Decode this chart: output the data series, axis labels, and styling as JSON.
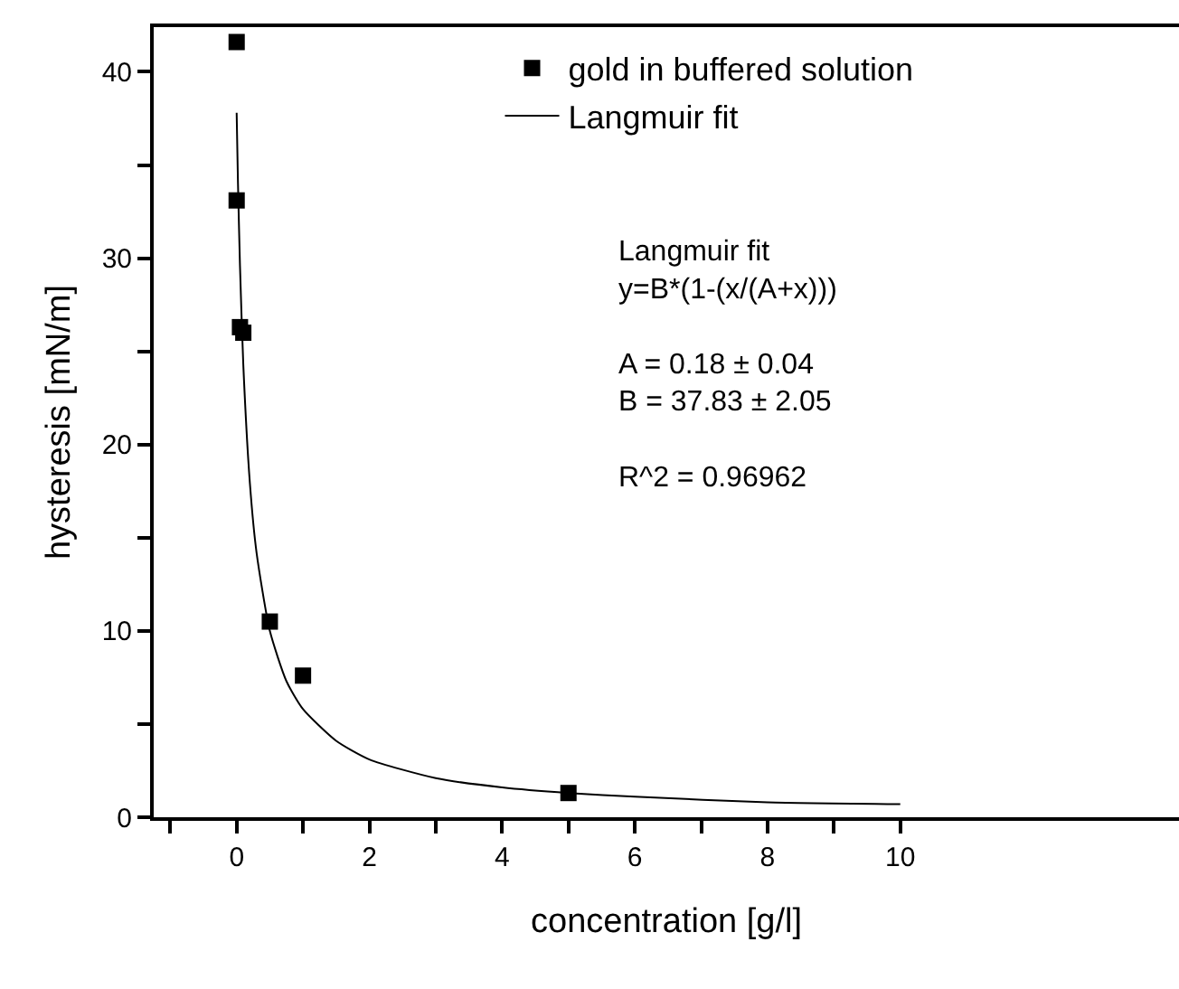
{
  "chart_data": {
    "type": "scatter",
    "xlabel": "concentration [g/l]",
    "ylabel": "hysteresis [mN/m]",
    "series": [
      {
        "name": "gold in buffered solution",
        "color": "#000000",
        "marker": "square",
        "x": [
          0,
          0,
          0.05,
          0.1,
          0.5,
          1,
          5
        ],
        "values": [
          41.6,
          33.1,
          26.3,
          26.0,
          10.5,
          7.6,
          1.3
        ]
      },
      {
        "name": "Langmuir fit",
        "type": "line",
        "color": "#000000",
        "marker": "none",
        "line_style": "solid",
        "x": [
          0,
          0.02,
          0.05,
          0.1,
          0.2,
          0.3,
          0.5,
          0.75,
          1,
          1.5,
          2,
          3,
          4,
          5,
          6,
          8,
          10
        ],
        "values": [
          37.8,
          34.0,
          29.6,
          24.3,
          17.9,
          14.2,
          10.0,
          7.3,
          5.8,
          4.1,
          3.1,
          2.1,
          1.6,
          1.3,
          1.1,
          0.8,
          0.7
        ]
      }
    ],
    "xlim": [
      -1.25,
      14.2
    ],
    "ylim": [
      0,
      42.4
    ],
    "xticks": [
      {
        "value": -1,
        "label": null
      },
      0,
      {
        "value": 1,
        "label": null
      },
      2,
      {
        "value": 3,
        "label": null
      },
      4,
      {
        "value": 5,
        "label": null
      },
      6,
      {
        "value": 7,
        "label": null
      },
      8,
      {
        "value": 9,
        "label": null
      },
      10
    ],
    "yticks": [
      0,
      {
        "value": 5,
        "label": null
      },
      10,
      {
        "value": 15,
        "label": null
      },
      20,
      {
        "value": 25,
        "label": null
      },
      30,
      {
        "value": 35,
        "label": null
      },
      40
    ],
    "grid": false,
    "legend": "top right",
    "annotations": [
      "Langmuir fit\ny=B*(1-(x/(A+x)))\n\nA = 0.18 ± 0.04\nB = 37.83 ± 2.05\n\nR^2 = 0.96962"
    ]
  }
}
